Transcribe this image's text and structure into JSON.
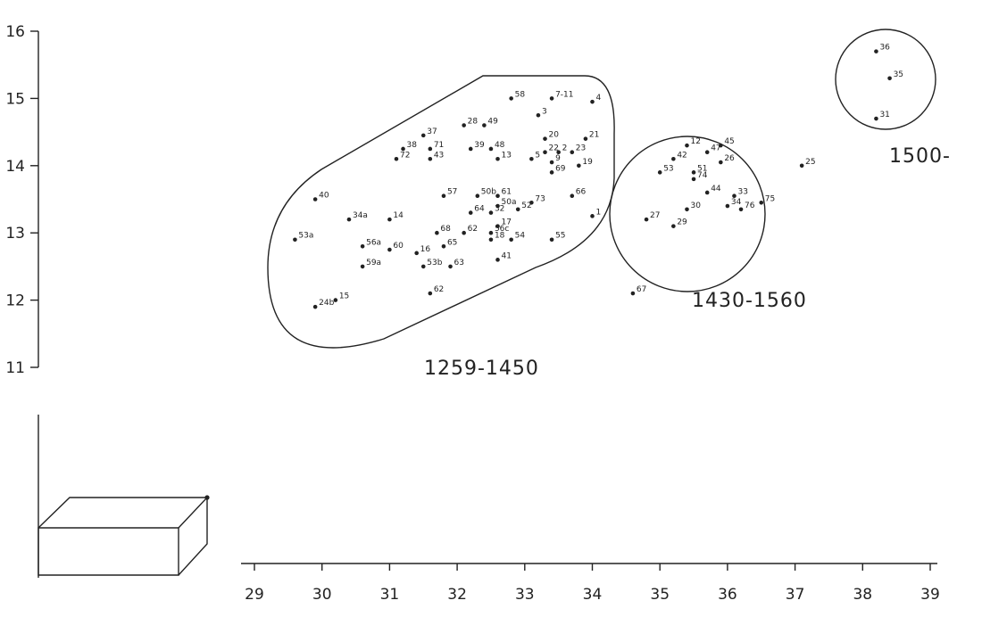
{
  "chart_data": {
    "type": "scatter",
    "title": "",
    "xlabel": "",
    "ylabel": "",
    "xlim": [
      29,
      39
    ],
    "ylim": [
      11,
      16
    ],
    "x_ticks": [
      29,
      30,
      31,
      32,
      33,
      34,
      35,
      36,
      37,
      38,
      39
    ],
    "y_ticks": [
      11,
      12,
      13,
      14,
      15,
      16
    ],
    "x_tick_labels": [
      "29",
      "30",
      "31",
      "32",
      "33",
      "34",
      "35",
      "36",
      "37",
      "38",
      "39"
    ],
    "y_tick_labels": [
      "11",
      "12",
      "13",
      "14",
      "15",
      "16"
    ],
    "grid": false,
    "points": [
      {
        "label": "58",
        "x": 32.8,
        "y": 15.0
      },
      {
        "label": "7-11",
        "x": 33.4,
        "y": 15.0
      },
      {
        "label": "4",
        "x": 34.0,
        "y": 14.95
      },
      {
        "label": "3",
        "x": 33.2,
        "y": 14.75
      },
      {
        "label": "28",
        "x": 32.1,
        "y": 14.6
      },
      {
        "label": "49",
        "x": 32.4,
        "y": 14.6
      },
      {
        "label": "37",
        "x": 31.5,
        "y": 14.45
      },
      {
        "label": "20",
        "x": 33.3,
        "y": 14.4
      },
      {
        "label": "21",
        "x": 33.9,
        "y": 14.4
      },
      {
        "label": "38",
        "x": 31.2,
        "y": 14.25
      },
      {
        "label": "71",
        "x": 31.6,
        "y": 14.25
      },
      {
        "label": "39",
        "x": 32.2,
        "y": 14.25
      },
      {
        "label": "48",
        "x": 32.5,
        "y": 14.25
      },
      {
        "label": "22",
        "x": 33.3,
        "y": 14.2
      },
      {
        "label": "2",
        "x": 33.5,
        "y": 14.2
      },
      {
        "label": "23",
        "x": 33.7,
        "y": 14.2
      },
      {
        "label": "72",
        "x": 31.1,
        "y": 14.1
      },
      {
        "label": "43",
        "x": 31.6,
        "y": 14.1
      },
      {
        "label": "13",
        "x": 32.6,
        "y": 14.1
      },
      {
        "label": "5",
        "x": 33.1,
        "y": 14.1
      },
      {
        "label": "9",
        "x": 33.4,
        "y": 14.05
      },
      {
        "label": "19",
        "x": 33.8,
        "y": 14.0
      },
      {
        "label": "69",
        "x": 33.4,
        "y": 13.9
      },
      {
        "label": "57",
        "x": 31.8,
        "y": 13.55
      },
      {
        "label": "50b",
        "x": 32.3,
        "y": 13.55
      },
      {
        "label": "61",
        "x": 32.6,
        "y": 13.55
      },
      {
        "label": "66",
        "x": 33.7,
        "y": 13.55
      },
      {
        "label": "40",
        "x": 29.9,
        "y": 13.5
      },
      {
        "label": "50a",
        "x": 32.6,
        "y": 13.4
      },
      {
        "label": "73",
        "x": 33.1,
        "y": 13.45
      },
      {
        "label": "52",
        "x": 32.9,
        "y": 13.35
      },
      {
        "label": "64",
        "x": 32.2,
        "y": 13.3
      },
      {
        "label": "32",
        "x": 32.5,
        "y": 13.3
      },
      {
        "label": "1",
        "x": 34.0,
        "y": 13.25
      },
      {
        "label": "14",
        "x": 31.0,
        "y": 13.2
      },
      {
        "label": "34a",
        "x": 30.4,
        "y": 13.2
      },
      {
        "label": "17",
        "x": 32.6,
        "y": 13.1
      },
      {
        "label": "68",
        "x": 31.7,
        "y": 13.0
      },
      {
        "label": "62",
        "x": 32.1,
        "y": 13.0
      },
      {
        "label": "56c",
        "x": 32.5,
        "y": 13.0
      },
      {
        "label": "18",
        "x": 32.5,
        "y": 12.9
      },
      {
        "label": "54",
        "x": 32.8,
        "y": 12.9
      },
      {
        "label": "55",
        "x": 33.4,
        "y": 12.9
      },
      {
        "label": "53a",
        "x": 29.6,
        "y": 12.9
      },
      {
        "label": "56a",
        "x": 30.6,
        "y": 12.8
      },
      {
        "label": "60",
        "x": 31.0,
        "y": 12.75
      },
      {
        "label": "16",
        "x": 31.4,
        "y": 12.7
      },
      {
        "label": "65",
        "x": 31.8,
        "y": 12.8
      },
      {
        "label": "41",
        "x": 32.6,
        "y": 12.6
      },
      {
        "label": "59a",
        "x": 30.6,
        "y": 12.5
      },
      {
        "label": "53b",
        "x": 31.5,
        "y": 12.5
      },
      {
        "label": "63",
        "x": 31.9,
        "y": 12.5
      },
      {
        "label": "62",
        "x": 31.6,
        "y": 12.1
      },
      {
        "label": "15",
        "x": 30.2,
        "y": 12.0
      },
      {
        "label": "24b",
        "x": 29.9,
        "y": 11.9
      },
      {
        "label": "12",
        "x": 35.4,
        "y": 14.3
      },
      {
        "label": "45",
        "x": 35.9,
        "y": 14.3
      },
      {
        "label": "47",
        "x": 35.7,
        "y": 14.2
      },
      {
        "label": "42",
        "x": 35.2,
        "y": 14.1
      },
      {
        "label": "26",
        "x": 35.9,
        "y": 14.05
      },
      {
        "label": "53",
        "x": 35.0,
        "y": 13.9
      },
      {
        "label": "51",
        "x": 35.5,
        "y": 13.9
      },
      {
        "label": "74",
        "x": 35.5,
        "y": 13.8
      },
      {
        "label": "44",
        "x": 35.7,
        "y": 13.6
      },
      {
        "label": "33",
        "x": 36.1,
        "y": 13.55
      },
      {
        "label": "75",
        "x": 36.5,
        "y": 13.45
      },
      {
        "label": "30",
        "x": 35.4,
        "y": 13.35
      },
      {
        "label": "34",
        "x": 36.0,
        "y": 13.4
      },
      {
        "label": "76",
        "x": 36.2,
        "y": 13.35
      },
      {
        "label": "27",
        "x": 34.8,
        "y": 13.2
      },
      {
        "label": "29",
        "x": 35.2,
        "y": 13.1
      },
      {
        "label": "67",
        "x": 34.6,
        "y": 12.1
      },
      {
        "label": "25",
        "x": 37.1,
        "y": 14.0
      },
      {
        "label": "36",
        "x": 38.2,
        "y": 15.7
      },
      {
        "label": "35",
        "x": 38.4,
        "y": 15.3
      },
      {
        "label": "31",
        "x": 38.2,
        "y": 14.7
      }
    ],
    "groups": [
      {
        "label": "1259-1450",
        "shape": "stadium"
      },
      {
        "label": "1430-1560",
        "shape": "circle"
      },
      {
        "label": "1500-",
        "shape": "circle"
      }
    ]
  }
}
